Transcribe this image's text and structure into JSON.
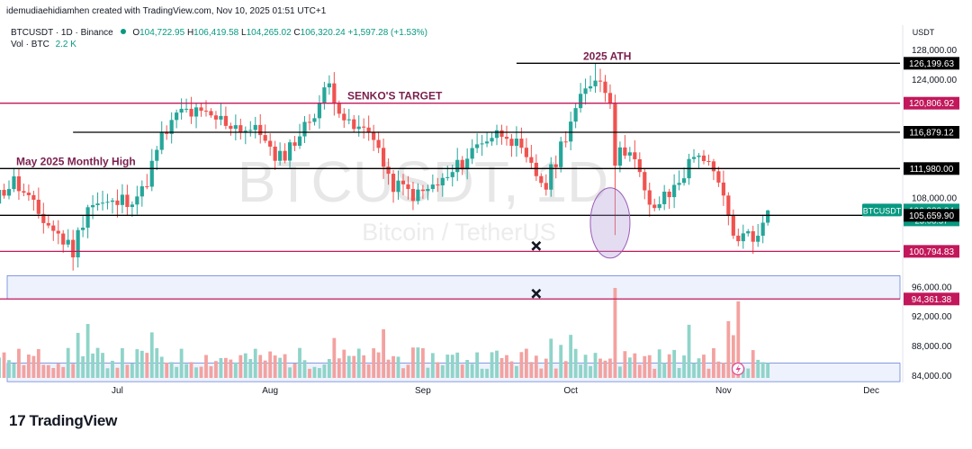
{
  "header": {
    "credit": "idemudiaehidiamhen created with TradingView.com, Nov 10, 2025 01:51 UTC+1",
    "symbol_line": "BTCUSDT · 1D · Binance",
    "ohlc": {
      "o_label": "O",
      "o": "104,722.95",
      "h_label": "H",
      "h": "106,419.58",
      "l_label": "L",
      "l": "104,265.02",
      "c_label": "C",
      "c": "106,320.24",
      "change": "+1,597.28 (+1.53%)"
    },
    "vol_label": "Vol · BTC",
    "vol_value": "2.2 K"
  },
  "watermark": {
    "ticker": "BTCUSDT, 1D",
    "name": "Bitcoin / TetherUS"
  },
  "branding": {
    "logo_glyph": "17",
    "name": "TradingView"
  },
  "colors": {
    "up": "#26a69a",
    "down": "#ef5350",
    "vol_up": "#8fd4c9",
    "vol_down": "#f3a2a0",
    "level_pink": "#c2185b",
    "level_black": "#000000",
    "price_badge": "#089981",
    "zone": "#e8eefb",
    "zone_border": "#3a5ccc"
  },
  "chart_data": {
    "type": "candlestick",
    "symbol": "BTCUSDT",
    "timeframe": "1D",
    "y_axis_label": "USDT",
    "ylim": [
      81500,
      129500
    ],
    "y_ticks": [
      84000,
      88000,
      92000,
      96000,
      108000,
      124000,
      128000
    ],
    "y_tick_labels": [
      "84,000.00",
      "88,000.00",
      "92,000.00",
      "96,000.00",
      "108,000.00",
      "124,000.00",
      "128,000.00"
    ],
    "x_ticks": [
      {
        "label": "Jul",
        "date": "2025-07-01"
      },
      {
        "label": "Aug",
        "date": "2025-08-01"
      },
      {
        "label": "Sep",
        "date": "2025-09-01"
      },
      {
        "label": "Oct",
        "date": "2025-10-01"
      },
      {
        "label": "Nov",
        "date": "2025-11-01"
      },
      {
        "label": "Dec",
        "date": "2025-12-01"
      }
    ],
    "x_start_date": "2025-06-02",
    "last_date": "2025-11-10",
    "close_path": [
      [
        "2025-06-02",
        105600
      ],
      [
        "2025-06-10",
        110200
      ],
      [
        "2025-06-15",
        105800
      ],
      [
        "2025-06-22",
        100900
      ],
      [
        "2025-06-25",
        107200
      ],
      [
        "2025-06-30",
        107100
      ],
      [
        "2025-07-06",
        108700
      ],
      [
        "2025-07-10",
        116000
      ],
      [
        "2025-07-14",
        119800
      ],
      [
        "2025-07-22",
        118500
      ],
      [
        "2025-07-31",
        116500
      ],
      [
        "2025-08-02",
        112500
      ],
      [
        "2025-08-08",
        117500
      ],
      [
        "2025-08-13",
        123300
      ],
      [
        "2025-08-17",
        117500
      ],
      [
        "2025-08-22",
        116800
      ],
      [
        "2025-08-25",
        110100
      ],
      [
        "2025-08-31",
        108300
      ],
      [
        "2025-09-06",
        110600
      ],
      [
        "2025-09-13",
        115900
      ],
      [
        "2025-09-18",
        117100
      ],
      [
        "2025-09-22",
        112700
      ],
      [
        "2025-09-26",
        109600
      ],
      [
        "2025-10-01",
        118600
      ],
      [
        "2025-10-06",
        124700
      ],
      [
        "2025-10-09",
        121700
      ],
      [
        "2025-10-10",
        113200
      ],
      [
        "2025-10-13",
        115200
      ],
      [
        "2025-10-17",
        106400
      ],
      [
        "2025-10-21",
        108400
      ],
      [
        "2025-10-27",
        114500
      ],
      [
        "2025-10-31",
        109600
      ],
      [
        "2025-11-04",
        101600
      ],
      [
        "2025-11-06",
        103900
      ],
      [
        "2025-11-08",
        102300
      ],
      [
        "2025-11-09",
        104700
      ],
      [
        "2025-11-10",
        106320
      ]
    ],
    "price_badges": [
      {
        "value": 126199.63,
        "label": "126,199.63",
        "style": "black"
      },
      {
        "value": 120806.92,
        "label": "120,806.92",
        "style": "pink"
      },
      {
        "value": 116879.12,
        "label": "116,879.12",
        "style": "black"
      },
      {
        "value": 111980.0,
        "label": "111,980.00",
        "style": "black"
      },
      {
        "value": 106320.24,
        "label": "106,320.24",
        "style": "current",
        "symbol": "BTCUSDT",
        "countdown": "23:08:57"
      },
      {
        "value": 105659.9,
        "label": "105,659.90",
        "style": "black"
      },
      {
        "value": 100794.83,
        "label": "100,794.83",
        "style": "pink"
      },
      {
        "value": 94361.38,
        "label": "94,361.38",
        "style": "pink"
      }
    ],
    "levels": [
      {
        "value": 126199.63,
        "color": "black",
        "from": "2025-09-20",
        "label": "2025 ATH"
      },
      {
        "value": 120806.92,
        "color": "pink",
        "from": "2025-06-02",
        "label": "SENKO'S TARGET"
      },
      {
        "value": 116879.12,
        "color": "black",
        "from": "2025-06-22"
      },
      {
        "value": 111980.0,
        "color": "black",
        "from": "2025-06-02",
        "label": "May 2025 Monthly High"
      },
      {
        "value": 105659.9,
        "color": "black",
        "from": "2025-06-02"
      },
      {
        "value": 100794.83,
        "color": "pink",
        "from": "2025-06-02"
      },
      {
        "value": 94361.38,
        "color": "pink",
        "from": "2025-06-02"
      }
    ],
    "zones": [
      {
        "from_value": 94361.38,
        "to_value": 97500,
        "from": "2025-06-02"
      },
      {
        "from_value": 83200,
        "to_value": 85700,
        "from": "2025-06-02"
      }
    ],
    "markers": [
      {
        "type": "x",
        "date": "2025-09-24",
        "value": 100794.83
      },
      {
        "type": "x",
        "date": "2025-09-24",
        "value": 94361.38
      },
      {
        "type": "ellipse",
        "date": "2025-10-10",
        "value": 105000
      }
    ],
    "volume_panel": {
      "label": "Vol · BTC",
      "last": "2.2 K",
      "spikes": [
        {
          "date": "2025-10-10",
          "relative": 1.0
        },
        {
          "date": "2025-11-04",
          "relative": 0.85
        }
      ]
    }
  }
}
